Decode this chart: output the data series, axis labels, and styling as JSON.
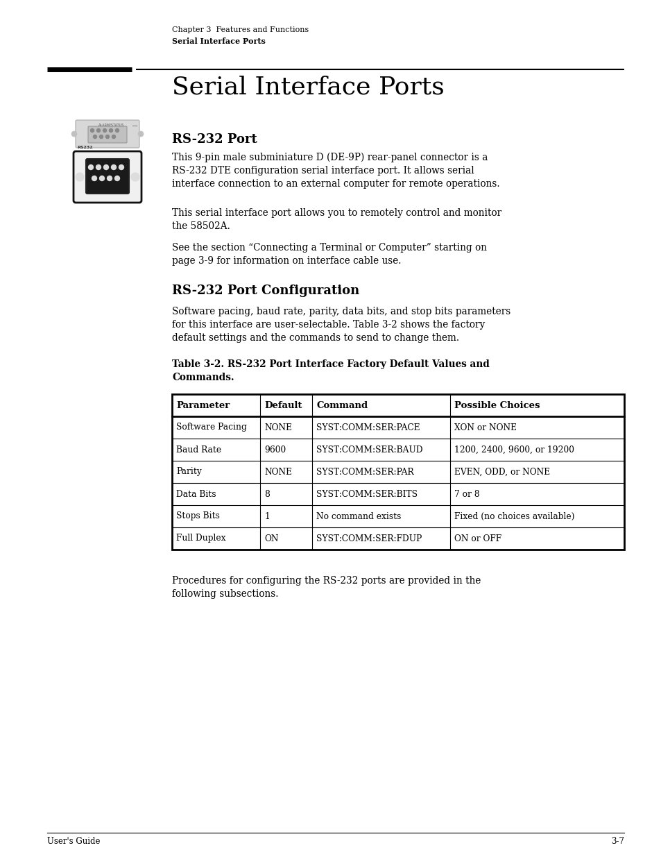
{
  "page_bg": "#ffffff",
  "header_line1": "Chapter 3  Features and Functions",
  "header_line2": "Serial Interface Ports",
  "section_title": "Serial Interface Ports",
  "subsection1": "RS-232 Port",
  "para1": "This 9-pin male subminiature D (DE-9P) rear-panel connector is a\nRS-232 DTE configuration serial interface port. It allows serial\ninterface connection to an external computer for remote operations.",
  "para2": "This serial interface port allows you to remotely control and monitor\nthe 58502A.",
  "para3": "See the section “Connecting a Terminal or Computer” starting on\npage 3-9 for information on interface cable use.",
  "subsection2": "RS-232 Port Configuration",
  "para4": "Software pacing, baud rate, parity, data bits, and stop bits parameters\nfor this interface are user-selectable. Table 3-2 shows the factory\ndefault settings and the commands to send to change them.",
  "table_caption": "Table 3-2. RS-232 Port Interface Factory Default Values and\nCommands.",
  "table_headers": [
    "Parameter",
    "Default",
    "Command",
    "Possible Choices"
  ],
  "table_rows": [
    [
      "Software Pacing",
      "NONE",
      "SYST:COMM:SER:PACE",
      "XON or NONE"
    ],
    [
      "Baud Rate",
      "9600",
      "SYST:COMM:SER:BAUD",
      "1200, 2400, 9600, or 19200"
    ],
    [
      "Parity",
      "NONE",
      "SYST:COMM:SER:PAR",
      "EVEN, ODD, or NONE"
    ],
    [
      "Data Bits",
      "8",
      "SYST:COMM:SER:BITS",
      "7 or 8"
    ],
    [
      "Stops Bits",
      "1",
      "No command exists",
      "Fixed (no choices available)"
    ],
    [
      "Full Duplex",
      "ON",
      "SYST:COMM:SER:FDUP",
      "ON or OFF"
    ]
  ],
  "footer_left": "User's Guide",
  "footer_right": "3-7",
  "para5": "Procedures for configuring the RS-232 ports are provided in the\nfollowing subsections."
}
